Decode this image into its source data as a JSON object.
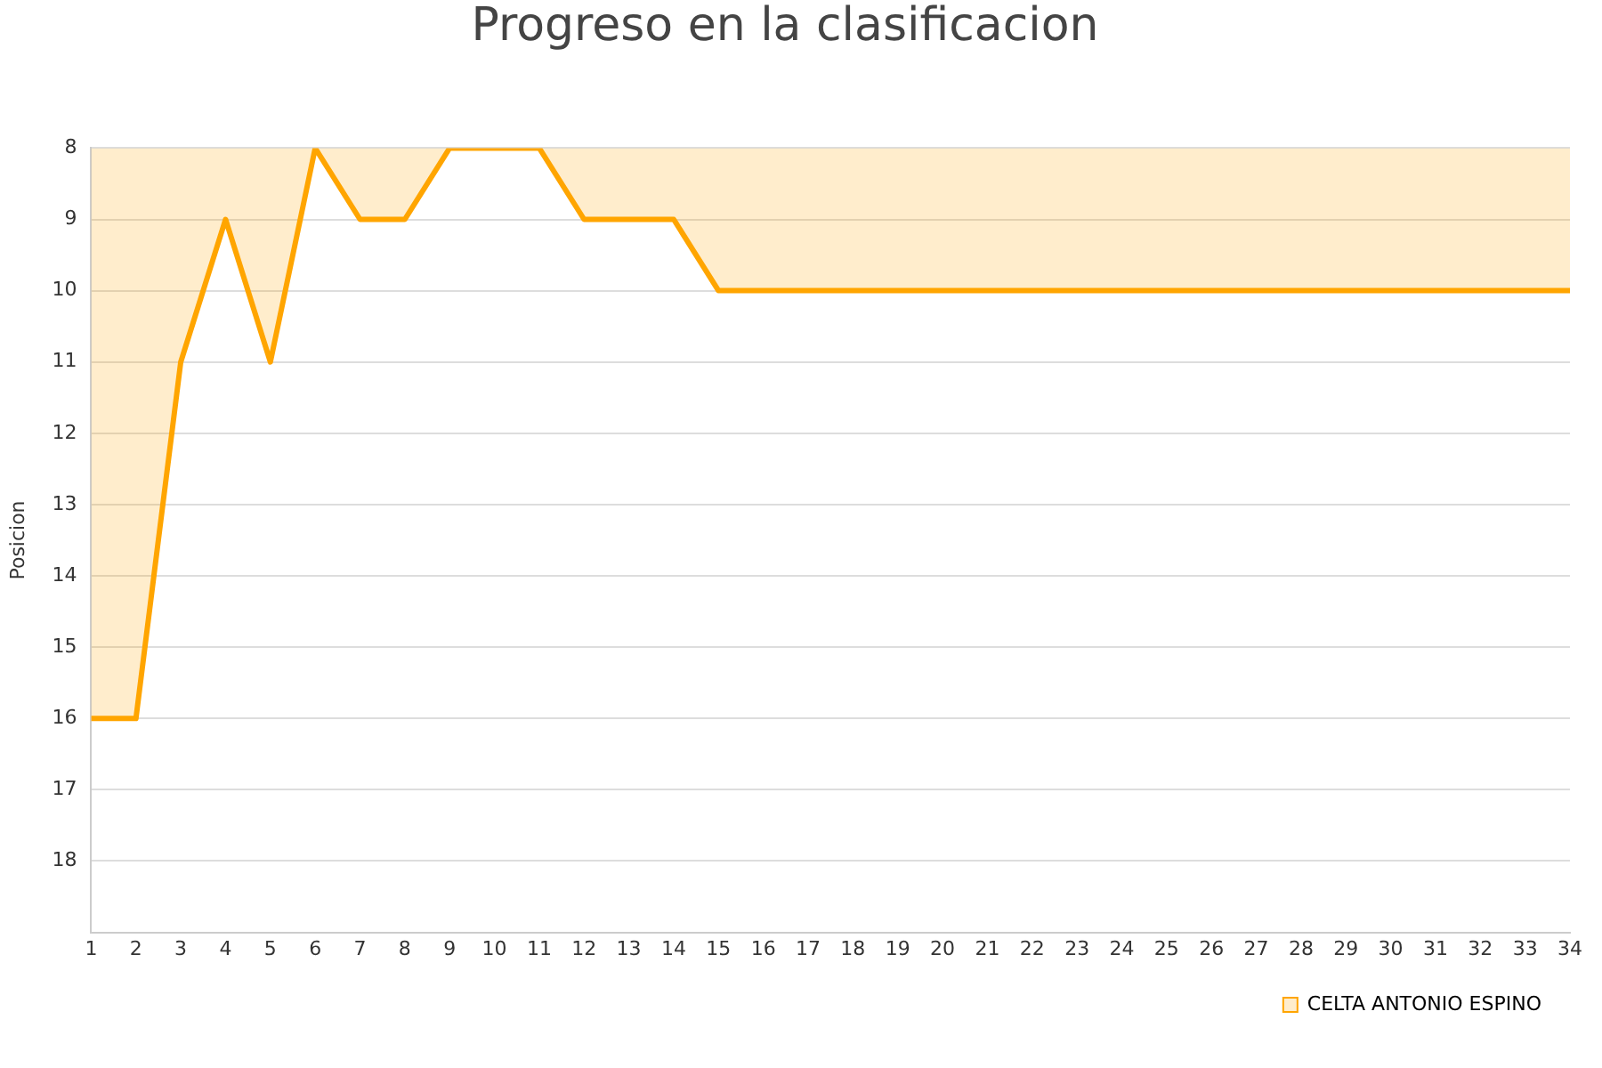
{
  "chart_data": {
    "type": "area",
    "title": "Progreso en la clasificacion",
    "ylabel": "Posicion",
    "x": [
      1,
      2,
      3,
      4,
      5,
      6,
      7,
      8,
      9,
      10,
      11,
      12,
      13,
      14,
      15,
      16,
      17,
      18,
      19,
      20,
      21,
      22,
      23,
      24,
      25,
      26,
      27,
      28,
      29,
      30,
      31,
      32,
      33,
      34
    ],
    "series": [
      {
        "name": "CELTA ANTONIO ESPINO",
        "color": "#ffa500",
        "values": [
          16,
          16,
          11,
          9,
          11,
          8,
          9,
          9,
          8,
          8,
          8,
          9,
          9,
          9,
          10,
          10,
          10,
          10,
          10,
          10,
          10,
          10,
          10,
          10,
          10,
          10,
          10,
          10,
          10,
          10,
          10,
          10,
          10,
          10
        ]
      }
    ],
    "xlim": [
      1,
      34
    ],
    "xticks": [
      1,
      2,
      3,
      4,
      5,
      6,
      7,
      8,
      9,
      10,
      11,
      12,
      13,
      14,
      15,
      16,
      17,
      18,
      19,
      20,
      21,
      22,
      23,
      24,
      25,
      26,
      27,
      28,
      29,
      30,
      31,
      32,
      33,
      34
    ],
    "ylim": [
      19,
      8
    ],
    "yticks": [
      8,
      9,
      10,
      11,
      12,
      13,
      14,
      15,
      16,
      17,
      18
    ],
    "grid": "y",
    "legend": "bottom right",
    "marker": "none",
    "line_style": "solid"
  }
}
